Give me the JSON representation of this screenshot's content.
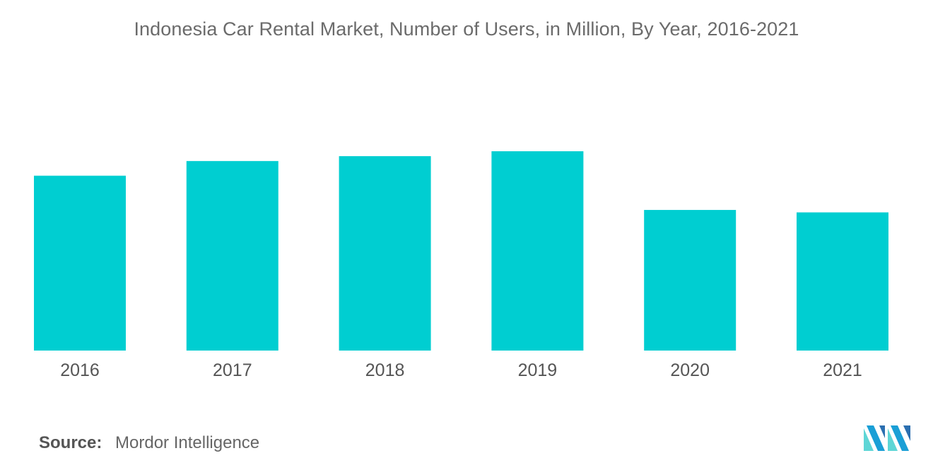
{
  "chart_data": {
    "type": "bar",
    "title": "Indonesia Car Rental Market, Number of Users, in Million, By Year, 2016-2021",
    "categories": [
      "2016",
      "2017",
      "2018",
      "2019",
      "2020",
      "2021"
    ],
    "values": [
      7.15,
      7.75,
      7.95,
      8.15,
      5.75,
      5.65
    ],
    "ylim": [
      0,
      10
    ],
    "xlabel": "",
    "ylabel": "",
    "grid": false,
    "bar_color": "#00ced1"
  },
  "source": {
    "label": "Source:",
    "value": "Mordor Intelligence"
  },
  "logo": {
    "icon": "mordor-intelligence-logo-icon",
    "colors": [
      "#1a9fd6",
      "#5ed6d6",
      "#2b6fb0"
    ]
  }
}
